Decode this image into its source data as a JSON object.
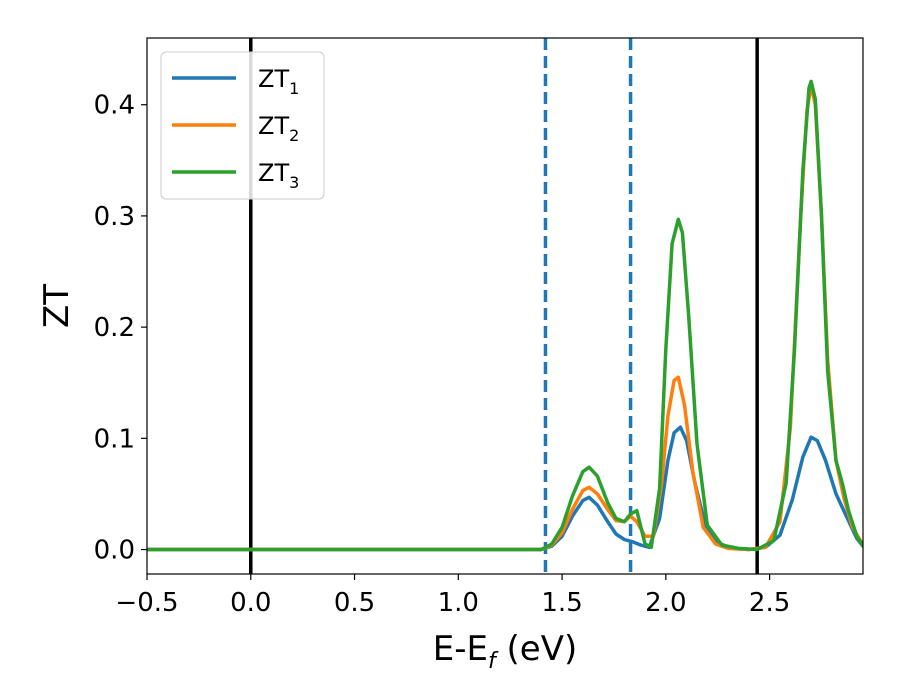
{
  "chart_data": {
    "type": "line",
    "title": "",
    "xlabel_main": "E-E",
    "xlabel_sub": "f",
    "xlabel_unit": " (eV)",
    "ylabel": "ZT",
    "xlim": [
      -0.5,
      2.95
    ],
    "ylim": [
      -0.022,
      0.46
    ],
    "xticks": [
      -0.5,
      0.0,
      0.5,
      1.0,
      1.5,
      2.0,
      2.5
    ],
    "xtick_labels": [
      "−0.5",
      "0.0",
      "0.5",
      "1.0",
      "1.5",
      "2.0",
      "2.5"
    ],
    "yticks": [
      0.0,
      0.1,
      0.2,
      0.3,
      0.4
    ],
    "ytick_labels": [
      "0.0",
      "0.1",
      "0.2",
      "0.3",
      "0.4"
    ],
    "grid": false,
    "legend_position": "top-left",
    "vlines_solid": [
      0.0,
      2.44
    ],
    "vlines_dashed": [
      1.42,
      1.83
    ],
    "vline_dashed_color": "#1f77b4",
    "vline_solid_color": "#000000",
    "series": [
      {
        "name": "ZT",
        "sub": "1",
        "color": "#1f77b4",
        "x": [
          -0.5,
          1.4,
          1.45,
          1.5,
          1.55,
          1.6,
          1.63,
          1.67,
          1.72,
          1.76,
          1.8,
          1.84,
          1.88,
          1.92,
          1.97,
          2.01,
          2.04,
          2.07,
          2.1,
          2.14,
          2.19,
          2.25,
          2.32,
          2.4,
          2.48,
          2.55,
          2.61,
          2.66,
          2.7,
          2.73,
          2.77,
          2.82,
          2.87,
          2.92,
          2.95
        ],
        "y": [
          0.0,
          0.0,
          0.003,
          0.012,
          0.03,
          0.044,
          0.047,
          0.04,
          0.025,
          0.014,
          0.009,
          0.007,
          0.004,
          0.002,
          0.028,
          0.08,
          0.105,
          0.11,
          0.098,
          0.06,
          0.022,
          0.006,
          0.001,
          0.0,
          0.002,
          0.013,
          0.045,
          0.083,
          0.101,
          0.098,
          0.08,
          0.05,
          0.03,
          0.01,
          0.003
        ]
      },
      {
        "name": "ZT",
        "sub": "2",
        "color": "#ff7f0e",
        "x": [
          -0.5,
          1.4,
          1.45,
          1.5,
          1.55,
          1.6,
          1.63,
          1.67,
          1.72,
          1.76,
          1.8,
          1.83,
          1.86,
          1.9,
          1.94,
          1.98,
          2.01,
          2.04,
          2.06,
          2.09,
          2.13,
          2.18,
          2.24,
          2.3,
          2.4,
          2.48,
          2.55,
          2.6,
          2.65,
          2.68,
          2.7,
          2.72,
          2.75,
          2.78,
          2.82,
          2.86,
          2.9,
          2.95
        ],
        "y": [
          0.0,
          0.0,
          0.004,
          0.015,
          0.036,
          0.053,
          0.056,
          0.05,
          0.036,
          0.026,
          0.025,
          0.03,
          0.025,
          0.012,
          0.012,
          0.06,
          0.12,
          0.152,
          0.155,
          0.13,
          0.07,
          0.02,
          0.005,
          0.001,
          0.0,
          0.002,
          0.025,
          0.11,
          0.3,
          0.395,
          0.417,
          0.4,
          0.3,
          0.17,
          0.08,
          0.045,
          0.02,
          0.004
        ]
      },
      {
        "name": "ZT",
        "sub": "3",
        "color": "#2ca02c",
        "x": [
          -0.5,
          1.4,
          1.45,
          1.5,
          1.55,
          1.6,
          1.63,
          1.67,
          1.72,
          1.76,
          1.8,
          1.83,
          1.86,
          1.88,
          1.9,
          1.93,
          1.97,
          2.0,
          2.03,
          2.06,
          2.08,
          2.11,
          2.15,
          2.2,
          2.27,
          2.35,
          2.44,
          2.52,
          2.58,
          2.62,
          2.66,
          2.69,
          2.7,
          2.72,
          2.75,
          2.78,
          2.82,
          2.85,
          2.88,
          2.92,
          2.95
        ],
        "y": [
          0.0,
          0.0,
          0.005,
          0.02,
          0.048,
          0.07,
          0.074,
          0.066,
          0.042,
          0.028,
          0.025,
          0.032,
          0.035,
          0.02,
          0.005,
          0.002,
          0.055,
          0.18,
          0.275,
          0.297,
          0.285,
          0.21,
          0.095,
          0.022,
          0.004,
          0.001,
          0.0,
          0.008,
          0.06,
          0.18,
          0.34,
          0.415,
          0.421,
          0.405,
          0.3,
          0.16,
          0.08,
          0.06,
          0.035,
          0.012,
          0.003
        ]
      }
    ]
  }
}
